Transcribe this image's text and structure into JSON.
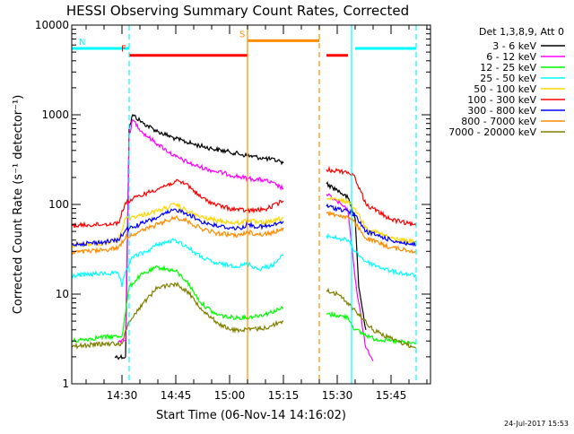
{
  "chart_data": {
    "type": "line",
    "title": "HESSI Observing Summary Count Rates, Corrected",
    "xlabel": "Start Time (06-Nov-14 14:16:02)",
    "ylabel": "Corrected Count Rate (s⁻¹ detector⁻¹)",
    "x_unit": "time of day (HH:MM), 06-Nov-14",
    "y_scale": "log",
    "xlim": [
      "14:16",
      "15:56"
    ],
    "ylim": [
      1,
      10000
    ],
    "x_ticks": [
      "14:30",
      "14:45",
      "15:00",
      "15:15",
      "15:30",
      "15:45"
    ],
    "y_ticks": [
      {
        "value": 1,
        "label": "1"
      },
      {
        "value": 10,
        "label": "10"
      },
      {
        "value": 100,
        "label": "100"
      },
      {
        "value": 1000,
        "label": "1000"
      },
      {
        "value": 10000,
        "label": "10000"
      }
    ],
    "legend_title": "Det 1,3,8,9, Att 0",
    "legend_position": "right",
    "timestamp": "24-Jul-2017 15:53",
    "flag_bars": [
      {
        "label": "N",
        "color": "#00ffff",
        "segments": [
          [
            "14:16",
            "14:32"
          ],
          [
            "15:35",
            "15:52"
          ]
        ],
        "level": 5500
      },
      {
        "label": "F",
        "color": "#ff0000",
        "segments": [
          [
            "14:32",
            "15:05"
          ],
          [
            "15:27",
            "15:33"
          ]
        ],
        "level": 4600
      },
      {
        "label": "S",
        "color": "#ff8c00",
        "segments": [
          [
            "15:05",
            "15:25"
          ]
        ],
        "level": 6700
      }
    ],
    "event_lines": [
      {
        "time": "14:32",
        "color": "#00ffff",
        "style": "dashed"
      },
      {
        "time": "15:52",
        "color": "#00ffff",
        "style": "dashed"
      },
      {
        "time": "15:34",
        "color": "#00ffff",
        "style": "solid"
      },
      {
        "time": "15:05",
        "color": "#ff8c00",
        "style": "solid"
      },
      {
        "time": "15:25",
        "color": "#ff8c00",
        "style": "dashed"
      }
    ],
    "series": [
      {
        "name": "3 - 6 keV",
        "color": "#000000",
        "points": [
          [
            "14:28",
            2
          ],
          [
            "14:31",
            2
          ],
          [
            "14:32",
            700
          ],
          [
            "14:33",
            1000
          ],
          [
            "14:36",
            800
          ],
          [
            "14:40",
            650
          ],
          [
            "14:45",
            540
          ],
          [
            "14:50",
            470
          ],
          [
            "14:55",
            420
          ],
          [
            "15:00",
            385
          ],
          [
            "15:05",
            350
          ],
          [
            "15:10",
            325
          ],
          [
            "15:14",
            305
          ],
          [
            "15:15",
            290
          ],
          null,
          [
            "15:27",
            170
          ],
          [
            "15:30",
            145
          ],
          [
            "15:33",
            118
          ],
          [
            "15:35",
            70
          ],
          [
            "15:36",
            12
          ],
          [
            "15:38",
            4
          ]
        ]
      },
      {
        "name": "6 - 12 keV",
        "color": "#ff00ff",
        "points": [
          [
            "14:29",
            3
          ],
          [
            "14:31",
            3
          ],
          [
            "14:32",
            600
          ],
          [
            "14:33",
            880
          ],
          [
            "14:36",
            620
          ],
          [
            "14:40",
            470
          ],
          [
            "14:45",
            340
          ],
          [
            "14:50",
            275
          ],
          [
            "14:55",
            240
          ],
          [
            "15:00",
            215
          ],
          [
            "15:05",
            195
          ],
          [
            "15:10",
            185
          ],
          [
            "15:13",
            165
          ],
          [
            "15:15",
            150
          ],
          null,
          [
            "15:27",
            130
          ],
          [
            "15:30",
            108
          ],
          [
            "15:33",
            85
          ],
          [
            "15:35",
            15
          ],
          [
            "15:36",
            8
          ],
          [
            "15:38",
            2.5
          ],
          [
            "15:40",
            1.8
          ]
        ]
      },
      {
        "name": "12 - 25 keV",
        "color": "#00ff00",
        "points": [
          [
            "14:16",
            3
          ],
          [
            "14:24",
            3.3
          ],
          [
            "14:30",
            3.4
          ],
          [
            "14:32",
            12
          ],
          [
            "14:35",
            16
          ],
          [
            "14:40",
            20
          ],
          [
            "14:45",
            18
          ],
          [
            "14:48",
            14
          ],
          [
            "14:52",
            8
          ],
          [
            "14:56",
            6
          ],
          [
            "15:00",
            5.5
          ],
          [
            "15:05",
            5.5
          ],
          [
            "15:10",
            6
          ],
          [
            "15:15",
            7
          ],
          null,
          [
            "15:27",
            6
          ],
          [
            "15:30",
            5.8
          ],
          [
            "15:33",
            5.5
          ],
          [
            "15:35",
            4
          ],
          [
            "15:40",
            3.2
          ],
          [
            "15:45",
            3
          ],
          [
            "15:52",
            2.8
          ]
        ]
      },
      {
        "name": "25 - 50 keV",
        "color": "#00ffff",
        "points": [
          [
            "14:16",
            16
          ],
          [
            "14:25",
            17
          ],
          [
            "14:29",
            17
          ],
          [
            "14:30",
            12
          ],
          [
            "14:31",
            18
          ],
          [
            "14:33",
            26
          ],
          [
            "14:37",
            30
          ],
          [
            "14:40",
            36
          ],
          [
            "14:45",
            40
          ],
          [
            "14:48",
            34
          ],
          [
            "14:52",
            26
          ],
          [
            "14:56",
            22
          ],
          [
            "15:00",
            21
          ],
          [
            "15:03",
            20.5
          ],
          [
            "15:05",
            22
          ],
          [
            "15:08",
            19
          ],
          [
            "15:12",
            21
          ],
          [
            "15:15",
            27
          ],
          null,
          [
            "15:27",
            45
          ],
          [
            "15:30",
            42
          ],
          [
            "15:33",
            40
          ],
          [
            "15:35",
            30
          ],
          [
            "15:38",
            23
          ],
          [
            "15:45",
            18
          ],
          [
            "15:52",
            16
          ]
        ]
      },
      {
        "name": "50 - 100 keV",
        "color": "#ffd700",
        "points": [
          [
            "14:16",
            35
          ],
          [
            "14:25",
            37
          ],
          [
            "14:29",
            40
          ],
          [
            "14:31",
            70
          ],
          [
            "14:35",
            75
          ],
          [
            "14:40",
            85
          ],
          [
            "14:45",
            100
          ],
          [
            "14:48",
            85
          ],
          [
            "14:52",
            72
          ],
          [
            "14:56",
            67
          ],
          [
            "15:00",
            63
          ],
          [
            "15:03",
            62
          ],
          [
            "15:05",
            68
          ],
          [
            "15:08",
            62
          ],
          [
            "15:12",
            64
          ],
          [
            "15:15",
            72
          ],
          null,
          [
            "15:27",
            115
          ],
          [
            "15:30",
            112
          ],
          [
            "15:33",
            108
          ],
          [
            "15:35",
            90
          ],
          [
            "15:38",
            55
          ],
          [
            "15:45",
            42
          ],
          [
            "15:52",
            38
          ]
        ]
      },
      {
        "name": "100 - 300 keV",
        "color": "#ff0000",
        "points": [
          [
            "14:16",
            58
          ],
          [
            "14:25",
            60
          ],
          [
            "14:29",
            62
          ],
          [
            "14:31",
            105
          ],
          [
            "14:35",
            125
          ],
          [
            "14:40",
            150
          ],
          [
            "14:45",
            180
          ],
          [
            "14:48",
            170
          ],
          [
            "14:52",
            120
          ],
          [
            "14:56",
            100
          ],
          [
            "15:00",
            90
          ],
          [
            "15:05",
            85
          ],
          [
            "15:10",
            88
          ],
          [
            "15:15",
            110
          ],
          null,
          [
            "15:27",
            245
          ],
          [
            "15:30",
            238
          ],
          [
            "15:33",
            230
          ],
          [
            "15:35",
            200
          ],
          [
            "15:38",
            100
          ],
          [
            "15:45",
            68
          ],
          [
            "15:52",
            58
          ]
        ]
      },
      {
        "name": "300 - 800 keV",
        "color": "#0000ff",
        "points": [
          [
            "14:16",
            36
          ],
          [
            "14:25",
            38
          ],
          [
            "14:29",
            40
          ],
          [
            "14:31",
            52
          ],
          [
            "14:35",
            60
          ],
          [
            "14:40",
            72
          ],
          [
            "14:45",
            88
          ],
          [
            "14:48",
            80
          ],
          [
            "14:52",
            65
          ],
          [
            "14:56",
            58
          ],
          [
            "15:00",
            55
          ],
          [
            "15:03",
            54
          ],
          [
            "15:05",
            60
          ],
          [
            "15:08",
            56
          ],
          [
            "15:12",
            58
          ],
          [
            "15:15",
            65
          ],
          null,
          [
            "15:27",
            95
          ],
          [
            "15:30",
            90
          ],
          [
            "15:33",
            85
          ],
          [
            "15:35",
            75
          ],
          [
            "15:38",
            50
          ],
          [
            "15:45",
            40
          ],
          [
            "15:52",
            35
          ]
        ]
      },
      {
        "name": "800 - 7000 keV",
        "color": "#ff8c00",
        "points": [
          [
            "14:16",
            29
          ],
          [
            "14:25",
            31
          ],
          [
            "14:29",
            33
          ],
          [
            "14:31",
            43
          ],
          [
            "14:35",
            50
          ],
          [
            "14:40",
            60
          ],
          [
            "14:45",
            72
          ],
          [
            "14:48",
            66
          ],
          [
            "14:52",
            54
          ],
          [
            "14:56",
            48
          ],
          [
            "15:00",
            46
          ],
          [
            "15:03",
            45
          ],
          [
            "15:05",
            50
          ],
          [
            "15:08",
            46
          ],
          [
            "15:12",
            48
          ],
          [
            "15:15",
            55
          ],
          null,
          [
            "15:27",
            80
          ],
          [
            "15:30",
            76
          ],
          [
            "15:33",
            72
          ],
          [
            "15:35",
            62
          ],
          [
            "15:38",
            42
          ],
          [
            "15:45",
            33
          ],
          [
            "15:52",
            30
          ]
        ]
      },
      {
        "name": "7000 - 20000 keV",
        "color": "#808000",
        "points": [
          [
            "14:16",
            2.6
          ],
          [
            "14:25",
            2.8
          ],
          [
            "14:30",
            2.8
          ],
          [
            "14:32",
            5
          ],
          [
            "14:36",
            8
          ],
          [
            "14:40",
            12
          ],
          [
            "14:45",
            13
          ],
          [
            "14:48",
            11
          ],
          [
            "14:52",
            7
          ],
          [
            "14:56",
            5
          ],
          [
            "15:00",
            4
          ],
          [
            "15:05",
            4
          ],
          [
            "15:10",
            4.2
          ],
          [
            "15:15",
            5
          ],
          null,
          [
            "15:27",
            11
          ],
          [
            "15:30",
            10
          ],
          [
            "15:33",
            8
          ],
          [
            "15:36",
            6
          ],
          [
            "15:40",
            4
          ],
          [
            "15:45",
            3.2
          ],
          [
            "15:52",
            2.5
          ]
        ]
      }
    ]
  }
}
